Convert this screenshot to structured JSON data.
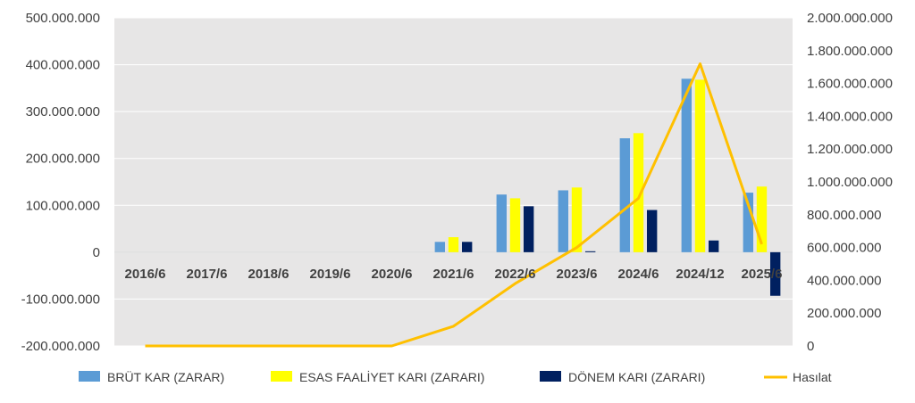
{
  "chart_data": {
    "type": "bar",
    "categories": [
      "2016/6",
      "2017/6",
      "2018/6",
      "2019/6",
      "2020/6",
      "2021/6",
      "2022/6",
      "2023/6",
      "2024/6",
      "2024/12",
      "2025/6"
    ],
    "series": [
      {
        "name": "BRÜT KAR (ZARAR)",
        "type": "bar",
        "axis": "left",
        "color": "#5B9BD5",
        "values": [
          0,
          0,
          0,
          0,
          0,
          22000000,
          123000000,
          132000000,
          243000000,
          370000000,
          127000000
        ]
      },
      {
        "name": "ESAS FAALİYET KARI (ZARARI)",
        "type": "bar",
        "axis": "left",
        "color": "#FFFF00",
        "values": [
          0,
          0,
          0,
          0,
          0,
          32000000,
          115000000,
          138000000,
          254000000,
          368000000,
          140000000
        ]
      },
      {
        "name": "DÖNEM KARI (ZARARI)",
        "type": "bar",
        "axis": "left",
        "color": "#002060",
        "values": [
          0,
          0,
          0,
          0,
          0,
          22000000,
          98000000,
          2000000,
          90000000,
          25000000,
          -93000000
        ]
      },
      {
        "name": "Hasılat",
        "type": "line",
        "axis": "right",
        "color": "#FFC000",
        "values": [
          0,
          0,
          0,
          0,
          0,
          120000000,
          380000000,
          600000000,
          900000000,
          1720000000,
          620000000
        ]
      }
    ],
    "y_left": {
      "min": -200000000,
      "max": 500000000,
      "step": 100000000,
      "tick_labels": [
        "-200.000.000",
        "-100.000.000",
        "0",
        "100.000.000",
        "200.000.000",
        "300.000.000",
        "400.000.000",
        "500.000.000"
      ]
    },
    "y_right": {
      "min": 0,
      "max": 2000000000,
      "step": 200000000,
      "tick_labels": [
        "0",
        "200.000.000",
        "400.000.000",
        "600.000.000",
        "800.000.000",
        "1.000.000.000",
        "1.200.000.000",
        "1.400.000.000",
        "1.600.000.000",
        "1.800.000.000",
        "2.000.000.000"
      ]
    },
    "grid": true,
    "legend": "bottom",
    "plot_background": "#E7E6E6"
  }
}
